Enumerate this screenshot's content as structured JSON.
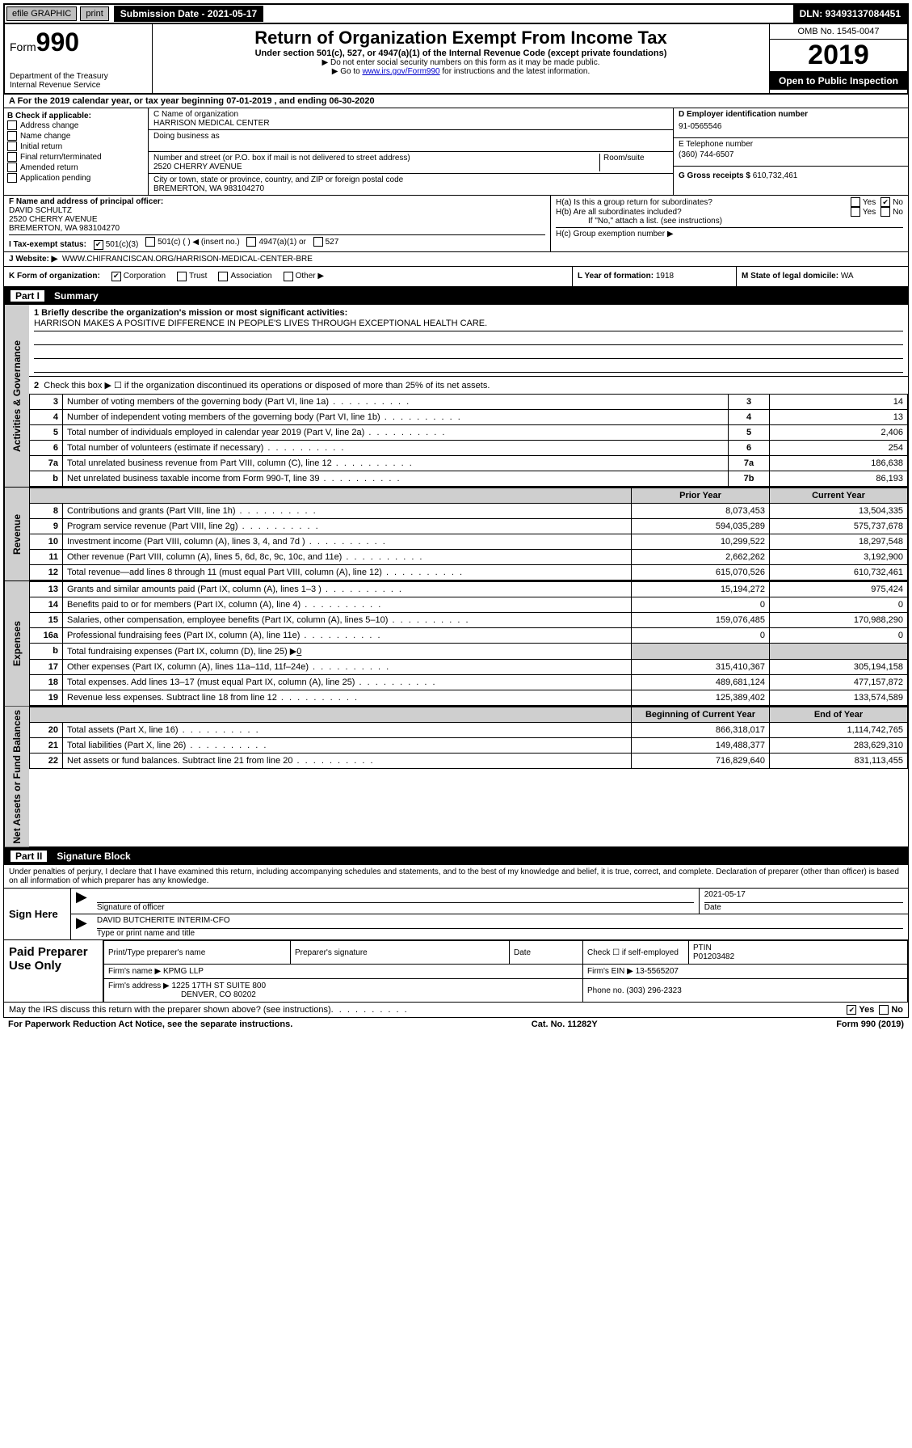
{
  "topbar": {
    "efile": "efile GRAPHIC",
    "print": "print",
    "submission": "Submission Date - 2021-05-17",
    "dln": "DLN: 93493137084451"
  },
  "header": {
    "form_prefix": "Form",
    "form_num": "990",
    "title": "Return of Organization Exempt From Income Tax",
    "sub1": "Under section 501(c), 527, or 4947(a)(1) of the Internal Revenue Code (except private foundations)",
    "sub2": "▶ Do not enter social security numbers on this form as it may be made public.",
    "sub3_pre": "▶ Go to ",
    "sub3_link": "www.irs.gov/Form990",
    "sub3_post": " for instructions and the latest information.",
    "dept": "Department of the Treasury\nInternal Revenue Service",
    "omb": "OMB No. 1545-0047",
    "year": "2019",
    "inspection": "Open to Public Inspection"
  },
  "row_a": "A For the 2019 calendar year, or tax year beginning 07-01-2019   , and ending 06-30-2020",
  "box_b": {
    "label": "B Check if applicable:",
    "items": [
      "Address change",
      "Name change",
      "Initial return",
      "Final return/terminated",
      "Amended return",
      "Application pending"
    ]
  },
  "box_c": {
    "label": "C Name of organization",
    "name": "HARRISON MEDICAL CENTER",
    "dba_label": "Doing business as",
    "addr_label": "Number and street (or P.O. box if mail is not delivered to street address)",
    "room_label": "Room/suite",
    "addr": "2520 CHERRY AVENUE",
    "city_label": "City or town, state or province, country, and ZIP or foreign postal code",
    "city": "BREMERTON, WA  983104270"
  },
  "box_d": {
    "label": "D Employer identification number",
    "val": "91-0565546"
  },
  "box_e": {
    "label": "E Telephone number",
    "val": "(360) 744-6507"
  },
  "box_g": {
    "label": "G Gross receipts $",
    "val": "610,732,461"
  },
  "box_f": {
    "label": "F Name and address of principal officer:",
    "name": "DAVID SCHULTZ",
    "addr1": "2520 CHERRY AVENUE",
    "addr2": "BREMERTON, WA  983104270"
  },
  "box_h": {
    "a": "H(a)  Is this a group return for subordinates?",
    "b": "H(b)  Are all subordinates included?",
    "b_note": "If \"No,\" attach a list. (see instructions)",
    "c": "H(c)  Group exemption number ▶",
    "yes": "Yes",
    "no": "No"
  },
  "box_i": {
    "label": "I  Tax-exempt status:",
    "o1": "501(c)(3)",
    "o2": "501(c) (  ) ◀ (insert no.)",
    "o3": "4947(a)(1) or",
    "o4": "527"
  },
  "box_j": {
    "label": "J  Website: ▶",
    "val": "WWW.CHIFRANCISCAN.ORG/HARRISON-MEDICAL-CENTER-BRE"
  },
  "box_k": {
    "label": "K Form of organization:",
    "o1": "Corporation",
    "o2": "Trust",
    "o3": "Association",
    "o4": "Other ▶"
  },
  "box_l": {
    "label": "L Year of formation:",
    "val": "1918"
  },
  "box_m": {
    "label": "M State of legal domicile:",
    "val": "WA"
  },
  "part1": {
    "lbl": "Part I",
    "title": "Summary"
  },
  "mission": {
    "q": "1  Briefly describe the organization's mission or most significant activities:",
    "text": "HARRISON MAKES A POSITIVE DIFFERENCE IN PEOPLE'S LIVES THROUGH EXCEPTIONAL HEALTH CARE."
  },
  "line2": "Check this box ▶ ☐  if the organization discontinued its operations or disposed of more than 25% of its net assets.",
  "side": {
    "gov": "Activities & Governance",
    "rev": "Revenue",
    "exp": "Expenses",
    "net": "Net Assets or Fund Balances"
  },
  "gov_rows": [
    {
      "n": "3",
      "d": "Number of voting members of the governing body (Part VI, line 1a)",
      "c": "3",
      "v": "14"
    },
    {
      "n": "4",
      "d": "Number of independent voting members of the governing body (Part VI, line 1b)",
      "c": "4",
      "v": "13"
    },
    {
      "n": "5",
      "d": "Total number of individuals employed in calendar year 2019 (Part V, line 2a)",
      "c": "5",
      "v": "2,406"
    },
    {
      "n": "6",
      "d": "Total number of volunteers (estimate if necessary)",
      "c": "6",
      "v": "254"
    },
    {
      "n": "7a",
      "d": "Total unrelated business revenue from Part VIII, column (C), line 12",
      "c": "7a",
      "v": "186,638"
    },
    {
      "n": "b",
      "d": "Net unrelated business taxable income from Form 990-T, line 39",
      "c": "7b",
      "v": "86,193"
    }
  ],
  "cols": {
    "prior": "Prior Year",
    "current": "Current Year",
    "boy": "Beginning of Current Year",
    "eoy": "End of Year"
  },
  "rev_rows": [
    {
      "n": "8",
      "d": "Contributions and grants (Part VIII, line 1h)",
      "p": "8,073,453",
      "c": "13,504,335"
    },
    {
      "n": "9",
      "d": "Program service revenue (Part VIII, line 2g)",
      "p": "594,035,289",
      "c": "575,737,678"
    },
    {
      "n": "10",
      "d": "Investment income (Part VIII, column (A), lines 3, 4, and 7d )",
      "p": "10,299,522",
      "c": "18,297,548"
    },
    {
      "n": "11",
      "d": "Other revenue (Part VIII, column (A), lines 5, 6d, 8c, 9c, 10c, and 11e)",
      "p": "2,662,262",
      "c": "3,192,900"
    },
    {
      "n": "12",
      "d": "Total revenue—add lines 8 through 11 (must equal Part VIII, column (A), line 12)",
      "p": "615,070,526",
      "c": "610,732,461"
    }
  ],
  "exp_rows": [
    {
      "n": "13",
      "d": "Grants and similar amounts paid (Part IX, column (A), lines 1–3 )",
      "p": "15,194,272",
      "c": "975,424"
    },
    {
      "n": "14",
      "d": "Benefits paid to or for members (Part IX, column (A), line 4)",
      "p": "0",
      "c": "0"
    },
    {
      "n": "15",
      "d": "Salaries, other compensation, employee benefits (Part IX, column (A), lines 5–10)",
      "p": "159,076,485",
      "c": "170,988,290"
    },
    {
      "n": "16a",
      "d": "Professional fundraising fees (Part IX, column (A), line 11e)",
      "p": "0",
      "c": "0"
    }
  ],
  "line16b": {
    "n": "b",
    "d": "Total fundraising expenses (Part IX, column (D), line 25) ▶",
    "v": "0"
  },
  "exp_rows2": [
    {
      "n": "17",
      "d": "Other expenses (Part IX, column (A), lines 11a–11d, 11f–24e)",
      "p": "315,410,367",
      "c": "305,194,158"
    },
    {
      "n": "18",
      "d": "Total expenses. Add lines 13–17 (must equal Part IX, column (A), line 25)",
      "p": "489,681,124",
      "c": "477,157,872"
    },
    {
      "n": "19",
      "d": "Revenue less expenses. Subtract line 18 from line 12",
      "p": "125,389,402",
      "c": "133,574,589"
    }
  ],
  "net_rows": [
    {
      "n": "20",
      "d": "Total assets (Part X, line 16)",
      "p": "866,318,017",
      "c": "1,114,742,765"
    },
    {
      "n": "21",
      "d": "Total liabilities (Part X, line 26)",
      "p": "149,488,377",
      "c": "283,629,310"
    },
    {
      "n": "22",
      "d": "Net assets or fund balances. Subtract line 21 from line 20",
      "p": "716,829,640",
      "c": "831,113,455"
    }
  ],
  "part2": {
    "lbl": "Part II",
    "title": "Signature Block"
  },
  "perjury": "Under penalties of perjury, I declare that I have examined this return, including accompanying schedules and statements, and to the best of my knowledge and belief, it is true, correct, and complete. Declaration of preparer (other than officer) is based on all information of which preparer has any knowledge.",
  "sign": {
    "here": "Sign Here",
    "sig_label": "Signature of officer",
    "date": "2021-05-17",
    "date_label": "Date",
    "name": "DAVID BUTCHERITE INTERIM-CFO",
    "name_label": "Type or print name and title"
  },
  "prep": {
    "label": "Paid Preparer Use Only",
    "h1": "Print/Type preparer's name",
    "h2": "Preparer's signature",
    "h3": "Date",
    "h4a": "Check ☐ if self-employed",
    "h4b": "PTIN",
    "ptin": "P01203482",
    "firm_label": "Firm's name    ▶",
    "firm": "KPMG LLP",
    "ein_label": "Firm's EIN ▶",
    "ein": "13-5565207",
    "addr_label": "Firm's address ▶",
    "addr1": "1225 17TH ST SUITE 800",
    "addr2": "DENVER, CO  80202",
    "phone_label": "Phone no.",
    "phone": "(303) 296-2323"
  },
  "discuss": "May the IRS discuss this return with the preparer shown above? (see instructions)",
  "footer": {
    "left": "For Paperwork Reduction Act Notice, see the separate instructions.",
    "mid": "Cat. No. 11282Y",
    "right": "Form 990 (2019)"
  }
}
